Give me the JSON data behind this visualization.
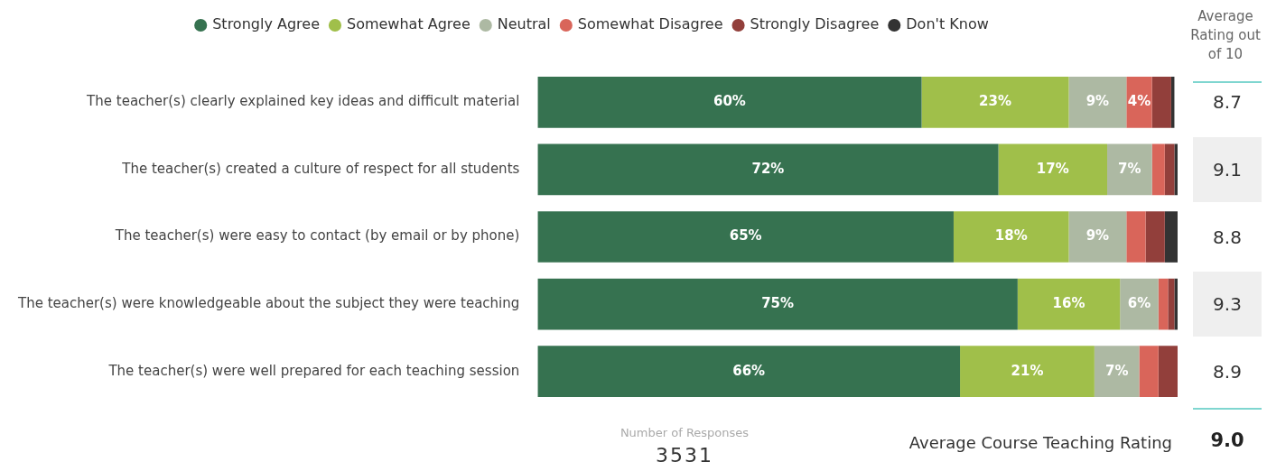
{
  "chart_data": {
    "type": "bar",
    "orientation": "horizontal",
    "stacked": true,
    "legend": "top",
    "tick_labels": "y",
    "xlim": [
      0,
      100
    ],
    "categories": [
      "The teacher(s) clearly explained key ideas and difficult material",
      "The teacher(s) created a culture of respect for all students",
      "The teacher(s) were easy to contact (by email or by phone)",
      "The teacher(s) were knowledgeable about the subject they were teaching",
      "The teacher(s) were well prepared for each teaching session"
    ],
    "series": [
      {
        "name": "Strongly Agree",
        "color": "#367250",
        "values": [
          60,
          72,
          65,
          75,
          66
        ],
        "value_labels": [
          "60%",
          "72%",
          "65%",
          "75%",
          "66%"
        ]
      },
      {
        "name": "Somewhat Agree",
        "color": "#a0bf4a",
        "values": [
          23,
          17,
          18,
          16,
          21
        ],
        "value_labels": [
          "23%",
          "17%",
          "18%",
          "16%",
          "21%"
        ]
      },
      {
        "name": "Neutral",
        "color": "#adb9a3",
        "values": [
          9,
          7,
          9,
          6,
          7
        ],
        "value_labels": [
          "9%",
          "7%",
          "9%",
          "6%",
          "7%"
        ]
      },
      {
        "name": "Somewhat Disagree",
        "color": "#d9655a",
        "values": [
          4,
          2,
          3,
          1.5,
          3
        ],
        "value_labels": [
          "4%",
          null,
          null,
          null,
          null
        ]
      },
      {
        "name": "Strongly Disagree",
        "color": "#923f3b",
        "values": [
          3,
          1.5,
          3,
          1,
          3
        ],
        "value_labels": [
          null,
          null,
          null,
          null,
          null
        ]
      },
      {
        "name": "Don't Know",
        "color": "#333333",
        "values": [
          0.5,
          0.5,
          2,
          0.5,
          0
        ],
        "value_labels": [
          null,
          null,
          null,
          null,
          null
        ]
      }
    ],
    "annotations": [
      "Average Rating out of 10",
      "8.7",
      "9.1",
      "8.8",
      "9.3",
      "8.9",
      "Number of Responses",
      "3531",
      "Average Course Teaching Rating",
      "9.0"
    ]
  }
}
